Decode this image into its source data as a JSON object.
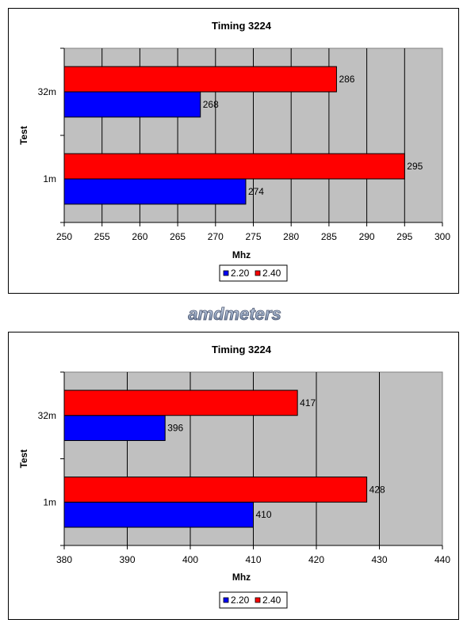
{
  "charts": [
    {
      "chart_data": {
        "type": "bar",
        "orientation": "horizontal",
        "title": "Timing 3224",
        "xlabel": "Mhz",
        "ylabel": "Test",
        "categories": [
          "32m",
          "1m"
        ],
        "series": [
          {
            "name": "2.20",
            "values": [
              268,
              274
            ],
            "color": "#0000ff"
          },
          {
            "name": "2.40",
            "values": [
              286,
              295
            ],
            "color": "#ff0000"
          }
        ],
        "xlim": [
          250,
          300
        ],
        "xticks": [
          "250",
          "255",
          "260",
          "265",
          "270",
          "275",
          "280",
          "285",
          "290",
          "295",
          "300"
        ],
        "grid": true,
        "legend_position": "bottom"
      }
    },
    {
      "chart_data": {
        "type": "bar",
        "orientation": "horizontal",
        "title": "Timing 3224",
        "xlabel": "Mhz",
        "ylabel": "Test",
        "categories": [
          "32m",
          "1m"
        ],
        "series": [
          {
            "name": "2.20",
            "values": [
              396,
              410
            ],
            "color": "#0000ff"
          },
          {
            "name": "2.40",
            "values": [
              417,
              428
            ],
            "color": "#ff0000"
          }
        ],
        "xlim": [
          380,
          440
        ],
        "xticks": [
          "380",
          "390",
          "400",
          "410",
          "420",
          "430",
          "440"
        ],
        "grid": true,
        "legend_position": "bottom"
      }
    }
  ],
  "logo": {
    "text": "amdmeters"
  },
  "colors": {
    "plot_background": "#c0c0c0",
    "grid": "#000000"
  }
}
